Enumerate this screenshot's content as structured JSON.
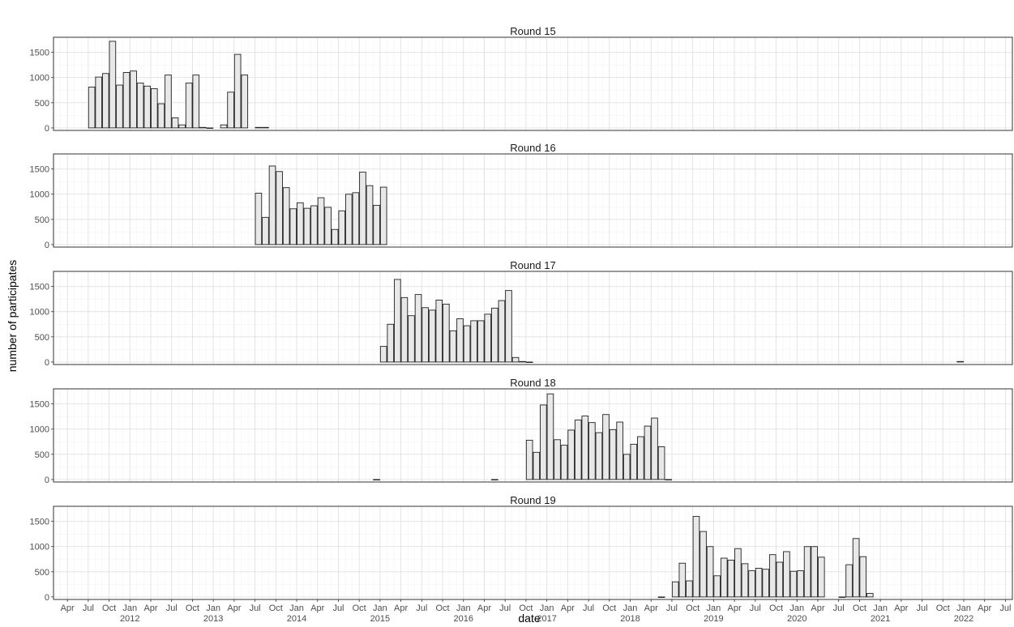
{
  "chart_data": {
    "type": "bar",
    "xlabel": "date",
    "ylabel": "number of participates",
    "x_month_labels": [
      "Apr",
      "Jul",
      "Oct",
      "Jan",
      "Apr",
      "Jul",
      "Oct",
      "Jan",
      "Apr",
      "Jul",
      "Oct",
      "Jan",
      "Apr",
      "Jul",
      "Oct",
      "Jan",
      "Apr",
      "Jul",
      "Oct",
      "Jan",
      "Apr",
      "Jul",
      "Oct",
      "Jan",
      "Apr",
      "Jul",
      "Oct",
      "Jan",
      "Apr",
      "Jul",
      "Oct",
      "Jan",
      "Apr",
      "Jul",
      "Oct",
      "Jan",
      "Apr",
      "Jul",
      "Oct",
      "Jan",
      "Apr",
      "Jul",
      "Oct",
      "Jan",
      "Apr",
      "Jul"
    ],
    "x_year_labels": [
      "2012",
      "2013",
      "2014",
      "2015",
      "2016",
      "2017",
      "2018",
      "2019",
      "2020",
      "2021",
      "2022"
    ],
    "xlim": [
      "2011-02",
      "2022-08"
    ],
    "ylim": [
      -50,
      1800
    ],
    "y_ticks": [
      0,
      500,
      1000,
      1500
    ],
    "grid": true,
    "bar_fill": "#e8e8e8",
    "bar_stroke": "#222222",
    "panels": [
      {
        "title": "Round 15",
        "x": [
          "2011-07",
          "2011-08",
          "2011-09",
          "2011-10",
          "2011-11",
          "2011-12",
          "2012-01",
          "2012-02",
          "2012-03",
          "2012-04",
          "2012-05",
          "2012-06",
          "2012-07",
          "2012-08",
          "2012-09",
          "2012-10",
          "2012-11",
          "2012-12",
          "2013-02",
          "2013-03",
          "2013-04",
          "2013-05",
          "2013-07",
          "2013-08"
        ],
        "values": [
          810,
          1010,
          1080,
          1720,
          850,
          1100,
          1130,
          890,
          830,
          780,
          480,
          1050,
          200,
          60,
          890,
          1050,
          10,
          0,
          60,
          710,
          1460,
          1050,
          10,
          10
        ]
      },
      {
        "title": "Round 16",
        "x": [
          "2013-07",
          "2013-08",
          "2013-09",
          "2013-10",
          "2013-11",
          "2013-12",
          "2014-01",
          "2014-02",
          "2014-03",
          "2014-04",
          "2014-05",
          "2014-06",
          "2014-07",
          "2014-08",
          "2014-09",
          "2014-10",
          "2014-11",
          "2014-12",
          "2015-01"
        ],
        "values": [
          1020,
          540,
          1560,
          1450,
          1130,
          710,
          830,
          720,
          770,
          930,
          740,
          300,
          670,
          1000,
          1030,
          1440,
          1170,
          780,
          1140
        ]
      },
      {
        "title": "Round 17",
        "x": [
          "2015-01",
          "2015-02",
          "2015-03",
          "2015-04",
          "2015-05",
          "2015-06",
          "2015-07",
          "2015-08",
          "2015-09",
          "2015-10",
          "2015-11",
          "2015-12",
          "2016-01",
          "2016-02",
          "2016-03",
          "2016-04",
          "2016-05",
          "2016-06",
          "2016-07",
          "2016-08",
          "2016-09",
          "2016-10",
          "2021-12"
        ],
        "values": [
          310,
          750,
          1640,
          1280,
          920,
          1340,
          1080,
          1030,
          1230,
          1150,
          620,
          860,
          720,
          820,
          820,
          950,
          1070,
          1220,
          1420,
          90,
          10,
          0,
          10
        ]
      },
      {
        "title": "Round 18",
        "x": [
          "2014-12",
          "2016-05",
          "2016-10",
          "2016-11",
          "2016-12",
          "2017-01",
          "2017-02",
          "2017-03",
          "2017-04",
          "2017-05",
          "2017-06",
          "2017-07",
          "2017-08",
          "2017-09",
          "2017-10",
          "2017-11",
          "2017-12",
          "2018-01",
          "2018-02",
          "2018-03",
          "2018-04",
          "2018-05",
          "2018-06"
        ],
        "values": [
          0,
          0,
          780,
          540,
          1480,
          1700,
          790,
          680,
          980,
          1180,
          1260,
          1130,
          930,
          1290,
          990,
          1140,
          500,
          700,
          850,
          1060,
          1220,
          650,
          0
        ]
      },
      {
        "title": "Round 19",
        "x": [
          "2018-05",
          "2018-07",
          "2018-08",
          "2018-09",
          "2018-10",
          "2018-11",
          "2018-12",
          "2019-01",
          "2019-02",
          "2019-03",
          "2019-04",
          "2019-05",
          "2019-06",
          "2019-07",
          "2019-08",
          "2019-09",
          "2019-10",
          "2019-11",
          "2019-12",
          "2020-01",
          "2020-02",
          "2020-03",
          "2020-04",
          "2020-07",
          "2020-08",
          "2020-09",
          "2020-10",
          "2020-11"
        ],
        "values": [
          0,
          300,
          670,
          320,
          1600,
          1300,
          1000,
          420,
          770,
          730,
          960,
          660,
          520,
          570,
          550,
          840,
          690,
          900,
          510,
          520,
          1000,
          1000,
          790,
          0,
          640,
          1160,
          800,
          70
        ]
      }
    ]
  }
}
